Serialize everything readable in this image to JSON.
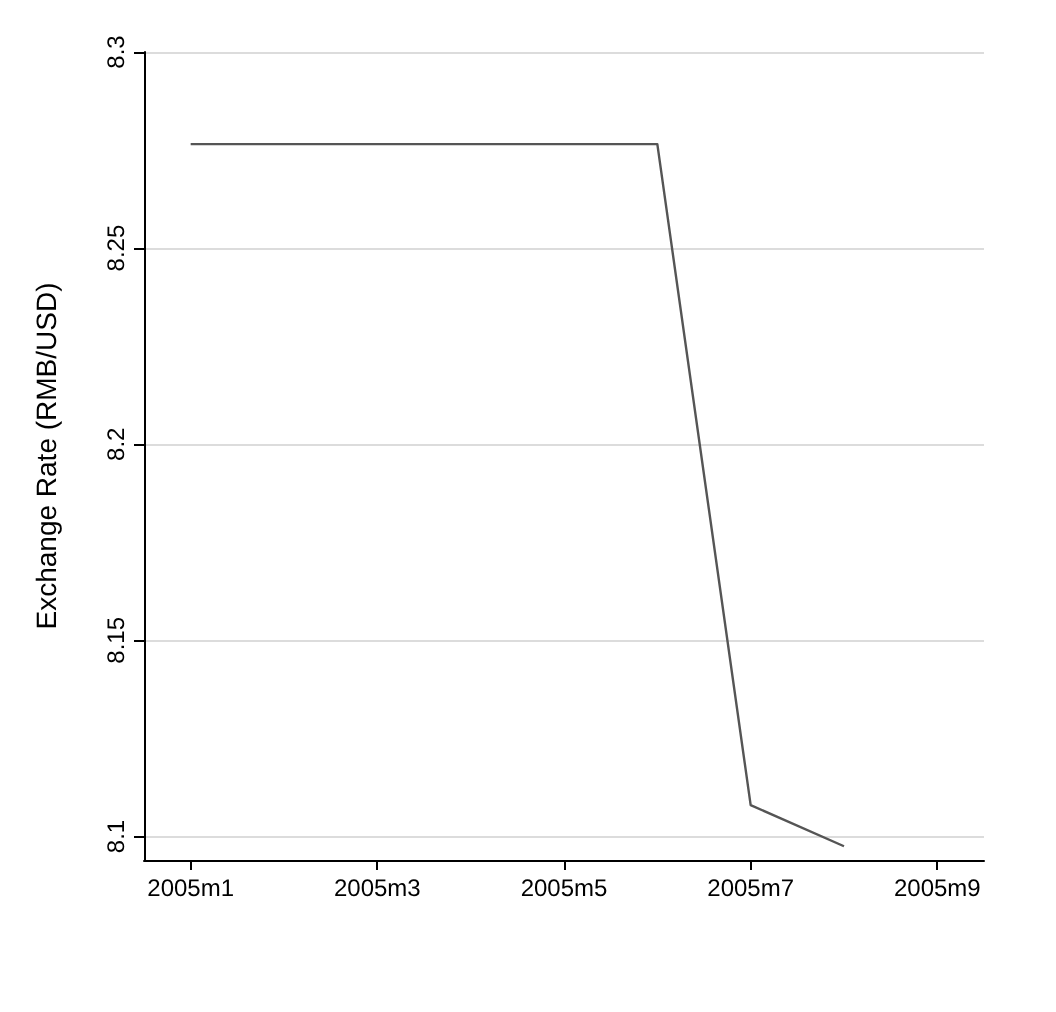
{
  "chart_data": {
    "type": "line",
    "ylabel": "Exchange Rate (RMB/USD)",
    "categories": [
      "2005m1",
      null,
      "2005m3",
      null,
      "2005m5",
      null,
      "2005m7",
      null,
      "2005m9"
    ],
    "series": [
      {
        "color": "#555555",
        "values": [
          8.2765,
          8.2765,
          8.2765,
          8.2765,
          8.2765,
          8.2765,
          8.108,
          8.0975,
          null
        ]
      }
    ],
    "ylim": [
      8.094,
      8.3
    ],
    "yticks": [
      8.1,
      8.15,
      8.2,
      8.25,
      8.3
    ],
    "grid": "y",
    "marker": "none",
    "line_style": "solid"
  }
}
